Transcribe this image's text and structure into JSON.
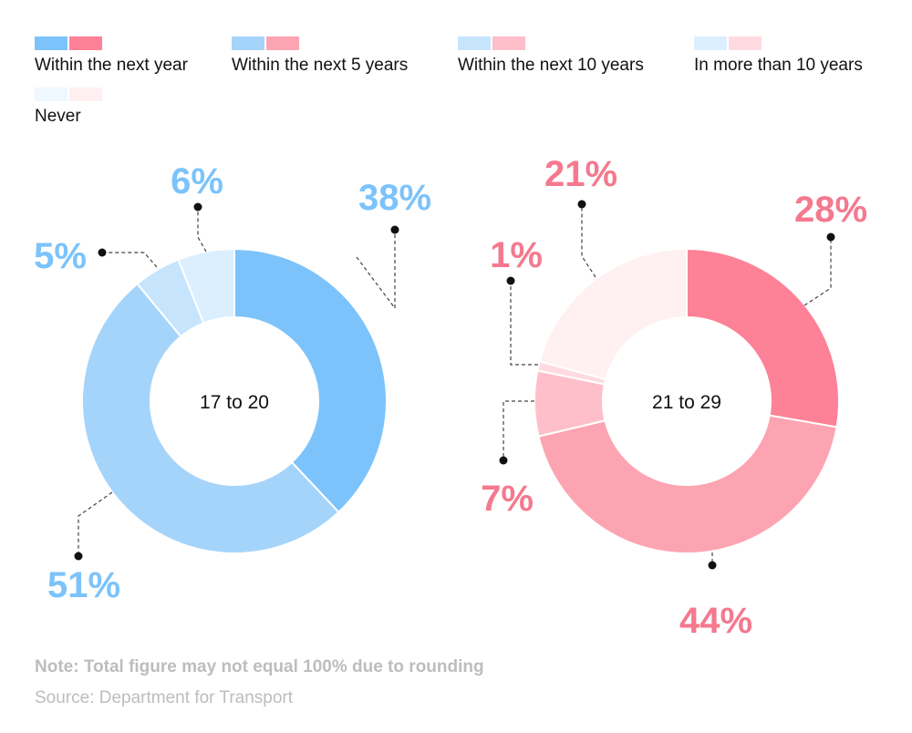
{
  "legend": [
    {
      "label": "Within the next year",
      "colors": [
        "#7cc3fb",
        "#fd8197"
      ]
    },
    {
      "label": "Within the next 5 years",
      "colors": [
        "#a5d4fb",
        "#fda4b3"
      ]
    },
    {
      "label": "Within the next 10 years",
      "colors": [
        "#c7e4fd",
        "#febfca"
      ]
    },
    {
      "label": "In more than 10 years",
      "colors": [
        "#dcefff",
        "#ffdbe1"
      ]
    },
    {
      "label": "Never",
      "colors": [
        "#eff7ff",
        "#fff0f2"
      ]
    }
  ],
  "chart_data": [
    {
      "type": "donut",
      "center_label": "17 to 20",
      "label_color": "#7cc3fb",
      "slices": [
        {
          "category": "Within the next year",
          "value": 38,
          "label": "38%",
          "color": "#7cc3fb"
        },
        {
          "category": "Within the next 5 years",
          "value": 51,
          "label": "51%",
          "color": "#a5d4fb"
        },
        {
          "category": "Within the next 10 years",
          "value": 5,
          "label": "5%",
          "color": "#c7e4fd"
        },
        {
          "category": "In more than 10 years",
          "value": 6,
          "label": "6%",
          "color": "#dcefff"
        }
      ]
    },
    {
      "type": "donut",
      "center_label": "21 to 29",
      "label_color": "#f4798f",
      "slices": [
        {
          "category": "Within the next year",
          "value": 28,
          "label": "28%",
          "color": "#fd8197"
        },
        {
          "category": "Within the next 5 years",
          "value": 44,
          "label": "44%",
          "color": "#fda4b3"
        },
        {
          "category": "Within the next 10 years",
          "value": 7,
          "label": "7%",
          "color": "#febfca"
        },
        {
          "category": "In more than 10 years",
          "value": 1,
          "label": "1%",
          "color": "#ffdbe1"
        },
        {
          "category": "Never",
          "value": 21,
          "label": "21%",
          "color": "#fff0f2"
        }
      ]
    }
  ],
  "footer": {
    "note": "Note: Total figure may not equal 100% due to rounding",
    "source": "Source: Department for Transport"
  }
}
